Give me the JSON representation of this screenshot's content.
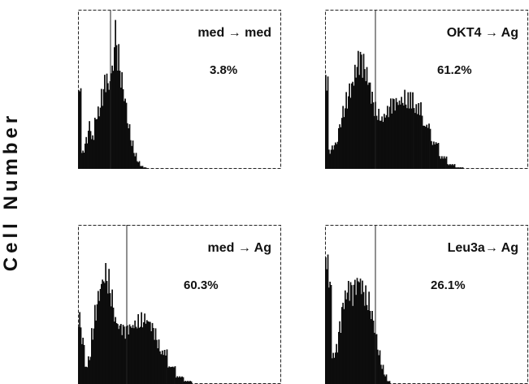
{
  "figure": {
    "ylabel": "Cell Number"
  },
  "chart_data": [
    {
      "type": "area",
      "panel": "top-left",
      "title": "med → med",
      "annotation": "3.8%",
      "x": [
        0,
        4,
        8,
        12,
        16,
        20,
        24,
        28,
        32,
        36,
        40,
        44,
        48,
        52,
        56,
        60,
        64,
        68,
        72,
        76,
        80,
        84,
        88,
        92,
        96,
        100,
        110,
        120,
        130,
        140,
        150,
        160,
        170,
        180,
        190,
        200,
        210,
        220,
        230,
        240,
        250
      ],
      "values": [
        0.55,
        0.12,
        0.2,
        0.3,
        0.22,
        0.35,
        0.4,
        0.5,
        0.6,
        0.58,
        0.7,
        0.95,
        0.78,
        0.62,
        0.48,
        0.3,
        0.18,
        0.1,
        0.05,
        0.02,
        0.01,
        0,
        0,
        0,
        0,
        0,
        0,
        0,
        0,
        0,
        0,
        0,
        0,
        0,
        0,
        0,
        0,
        0,
        0,
        0,
        0
      ]
    },
    {
      "type": "area",
      "panel": "top-right",
      "title": "OKT4 → Ag",
      "annotation": "61.2%",
      "x": [
        0,
        4,
        8,
        12,
        16,
        20,
        24,
        28,
        32,
        36,
        40,
        44,
        48,
        52,
        56,
        60,
        64,
        68,
        72,
        76,
        80,
        84,
        88,
        92,
        96,
        100,
        110,
        120,
        130,
        140,
        150,
        160,
        170,
        180,
        190,
        200,
        210,
        220,
        230,
        240,
        250
      ],
      "values": [
        0.6,
        0.12,
        0.15,
        0.18,
        0.3,
        0.4,
        0.48,
        0.55,
        0.6,
        0.68,
        0.74,
        0.72,
        0.66,
        0.6,
        0.5,
        0.42,
        0.38,
        0.35,
        0.37,
        0.4,
        0.44,
        0.45,
        0.46,
        0.48,
        0.5,
        0.48,
        0.42,
        0.3,
        0.18,
        0.08,
        0.03,
        0.01,
        0,
        0,
        0,
        0,
        0,
        0,
        0,
        0,
        0
      ]
    },
    {
      "type": "area",
      "panel": "bottom-left",
      "title": "med → Ag",
      "annotation": "60.3%",
      "x": [
        0,
        4,
        8,
        12,
        16,
        20,
        24,
        28,
        32,
        36,
        40,
        44,
        48,
        52,
        56,
        60,
        64,
        68,
        72,
        76,
        80,
        84,
        88,
        92,
        96,
        100,
        110,
        120,
        130,
        140,
        150,
        160,
        170,
        180,
        190,
        200,
        210,
        220,
        230,
        240,
        250
      ],
      "values": [
        0.45,
        0.3,
        0.12,
        0.18,
        0.35,
        0.5,
        0.62,
        0.72,
        0.78,
        0.72,
        0.6,
        0.45,
        0.4,
        0.38,
        0.36,
        0.38,
        0.4,
        0.42,
        0.44,
        0.45,
        0.46,
        0.44,
        0.4,
        0.35,
        0.28,
        0.22,
        0.12,
        0.05,
        0.02,
        0,
        0,
        0,
        0,
        0,
        0,
        0,
        0,
        0,
        0,
        0,
        0
      ]
    },
    {
      "type": "area",
      "panel": "bottom-right",
      "title": "Leu3a→ Ag",
      "annotation": "26.1%",
      "x": [
        0,
        4,
        8,
        12,
        16,
        20,
        24,
        28,
        32,
        36,
        40,
        44,
        48,
        52,
        56,
        60,
        64,
        68,
        72,
        76,
        80,
        84,
        88,
        92,
        96,
        100,
        110,
        120,
        130,
        140,
        150,
        160,
        170,
        180,
        190,
        200,
        210,
        220,
        230,
        240,
        250
      ],
      "values": [
        0.85,
        0.7,
        0.2,
        0.25,
        0.4,
        0.55,
        0.62,
        0.65,
        0.62,
        0.68,
        0.72,
        0.68,
        0.62,
        0.58,
        0.48,
        0.35,
        0.22,
        0.12,
        0.06,
        0.02,
        0,
        0,
        0,
        0,
        0,
        0,
        0,
        0,
        0,
        0,
        0,
        0,
        0,
        0,
        0,
        0,
        0,
        0,
        0,
        0,
        0
      ]
    }
  ]
}
